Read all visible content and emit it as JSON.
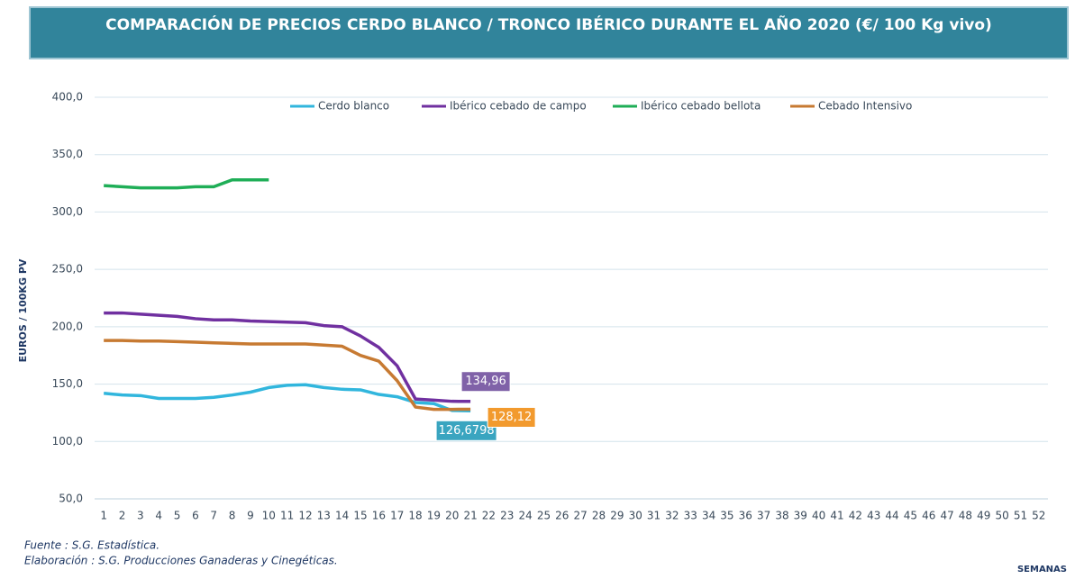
{
  "chart_data": {
    "type": "line",
    "title": "COMPARACIÓN DE PRECIOS CERDO BLANCO / TRONCO IBÉRICO DURANTE EL AÑO 2020 (€/ 100 Kg vivo)",
    "y_label": "EUROS / 100KG PV",
    "x_label": "SEMANAS",
    "source": "Fuente :  S.G. Estadística.",
    "elaboration": "Elaboración : S.G. Producciones Ganaderas y Cinegéticas.",
    "x": [
      1,
      2,
      3,
      4,
      5,
      6,
      7,
      8,
      9,
      10,
      11,
      12,
      13,
      14,
      15,
      16,
      17,
      18,
      19,
      20,
      21,
      22,
      23,
      24,
      25,
      26,
      27,
      28,
      29,
      30,
      31,
      32,
      33,
      34,
      35,
      36,
      37,
      38,
      39,
      40,
      41,
      42,
      43,
      44,
      45,
      46,
      47,
      48,
      49,
      50,
      51,
      52
    ],
    "xlim": [
      0.5,
      52.5
    ],
    "ylim": [
      50,
      400
    ],
    "yticks": [
      {
        "value": 50,
        "label": "50,0"
      },
      {
        "value": 100,
        "label": "100,0"
      },
      {
        "value": 150,
        "label": "150,0"
      },
      {
        "value": 200,
        "label": "200,0"
      },
      {
        "value": 250,
        "label": "250,0"
      },
      {
        "value": 300,
        "label": "300,0"
      },
      {
        "value": 350,
        "label": "350,0"
      },
      {
        "value": 400,
        "label": "400,0"
      }
    ],
    "grid": true,
    "legend": "top",
    "series": [
      {
        "name": "Cerdo blanco",
        "color": "#31b6dd",
        "label_color": "#3aa5c0",
        "values": [
          142,
          140.5,
          140,
          137.5,
          137.5,
          137.5,
          138.5,
          140.5,
          143,
          147,
          149,
          149.5,
          147,
          145.5,
          145,
          141,
          139,
          134,
          133,
          127,
          126.6798,
          null,
          null,
          null,
          null,
          null,
          null,
          null,
          null,
          null,
          null,
          null,
          null,
          null,
          null,
          null,
          null,
          null,
          null,
          null,
          null,
          null,
          null,
          null,
          null,
          null,
          null,
          null,
          null,
          null,
          null,
          null
        ],
        "value_labels": [
          null,
          null,
          null,
          null,
          null,
          null,
          null,
          null,
          null,
          null,
          null,
          null,
          null,
          null,
          null,
          null,
          null,
          null,
          null,
          null,
          "126,6798",
          null,
          null,
          null,
          null,
          null,
          null,
          null,
          null,
          null,
          null,
          null,
          null,
          null,
          null,
          null,
          null,
          null,
          null,
          null,
          null,
          null,
          null,
          null,
          null,
          null,
          null,
          null,
          null,
          null,
          null,
          null
        ]
      },
      {
        "name": "Ibérico cebado de campo",
        "color": "#7030a0",
        "label_color": "#8062a8",
        "values": [
          212,
          212,
          211,
          210,
          209,
          207,
          206,
          206,
          205,
          204.5,
          204,
          203.5,
          201,
          200,
          192,
          182,
          166,
          137,
          136,
          135,
          134.96,
          null,
          null,
          null,
          null,
          null,
          null,
          null,
          null,
          null,
          null,
          null,
          null,
          null,
          null,
          null,
          null,
          null,
          null,
          null,
          null,
          null,
          null,
          null,
          null,
          null,
          null,
          null,
          null,
          null,
          null,
          null
        ],
        "value_labels": [
          null,
          null,
          null,
          null,
          null,
          null,
          null,
          null,
          null,
          null,
          null,
          null,
          null,
          null,
          null,
          null,
          null,
          null,
          null,
          null,
          "134,96",
          null,
          null,
          null,
          null,
          null,
          null,
          null,
          null,
          null,
          null,
          null,
          null,
          null,
          null,
          null,
          null,
          null,
          null,
          null,
          null,
          null,
          null,
          null,
          null,
          null,
          null,
          null,
          null,
          null,
          null,
          null
        ]
      },
      {
        "name": "Ibérico cebado bellota",
        "color": "#1fae57",
        "values": [
          323,
          322,
          321,
          321,
          321,
          322,
          322,
          328,
          328,
          328,
          null,
          null,
          null,
          null,
          null,
          null,
          null,
          null,
          null,
          null,
          null,
          null,
          null,
          null,
          null,
          null,
          null,
          null,
          null,
          null,
          null,
          null,
          null,
          null,
          null,
          null,
          null,
          null,
          null,
          null,
          null,
          null,
          null,
          null,
          null,
          null,
          null,
          null,
          null,
          null,
          null,
          null
        ]
      },
      {
        "name": "Cebado Intensivo",
        "color": "#c77a32",
        "label_color": "#f29a2e",
        "values": [
          188,
          188,
          187.5,
          187.5,
          187,
          186.5,
          186,
          185.5,
          185,
          185,
          185,
          185,
          184,
          183,
          175,
          170,
          153,
          130,
          128,
          128,
          128.12,
          null,
          null,
          null,
          null,
          null,
          null,
          null,
          null,
          null,
          null,
          null,
          null,
          null,
          null,
          null,
          null,
          null,
          null,
          null,
          null,
          null,
          null,
          null,
          null,
          null,
          null,
          null,
          null,
          null,
          null,
          null
        ],
        "value_labels": [
          null,
          null,
          null,
          null,
          null,
          null,
          null,
          null,
          null,
          null,
          null,
          null,
          null,
          null,
          null,
          null,
          null,
          null,
          null,
          null,
          "128,12",
          null,
          null,
          null,
          null,
          null,
          null,
          null,
          null,
          null,
          null,
          null,
          null,
          null,
          null,
          null,
          null,
          null,
          null,
          null,
          null,
          null,
          null,
          null,
          null,
          null,
          null,
          null,
          null,
          null,
          null,
          null
        ]
      }
    ]
  }
}
